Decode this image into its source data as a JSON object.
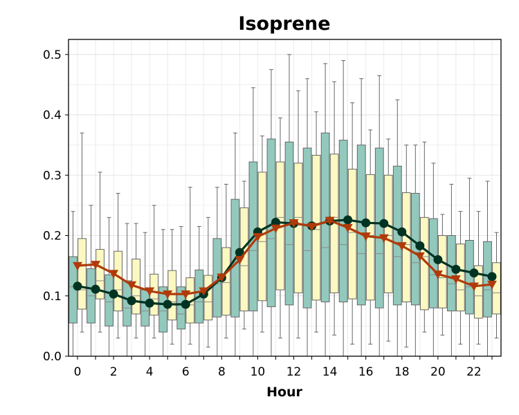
{
  "chart_data": {
    "type": "box",
    "title": "Isoprene",
    "xlabel": "Hour",
    "ylabel": "",
    "xlim": [
      -0.5,
      23.5
    ],
    "ylim": [
      0.0,
      0.525
    ],
    "xticks": [
      0,
      2,
      4,
      6,
      8,
      10,
      12,
      14,
      16,
      18,
      20,
      22
    ],
    "yticks": [
      0.0,
      0.1,
      0.2,
      0.3,
      0.4,
      0.5
    ],
    "ytick_labels": [
      "0.0",
      "0.1",
      "0.2",
      "0.3",
      "0.4",
      "0.5"
    ],
    "grid": true,
    "hours": [
      0,
      1,
      2,
      3,
      4,
      5,
      6,
      7,
      8,
      9,
      10,
      11,
      12,
      13,
      14,
      15,
      16,
      17,
      18,
      19,
      20,
      21,
      22,
      23
    ],
    "box_series": [
      {
        "color": "#93c9bd",
        "boxes": [
          {
            "whislo": 0.0,
            "q1": 0.055,
            "med": 0.115,
            "q3": 0.165,
            "whishi": 0.24
          },
          {
            "whislo": 0.0,
            "q1": 0.055,
            "med": 0.1,
            "q3": 0.145,
            "whishi": 0.25
          },
          {
            "whislo": 0.0,
            "q1": 0.05,
            "med": 0.09,
            "q3": 0.135,
            "whishi": 0.23
          },
          {
            "whislo": 0.0,
            "q1": 0.05,
            "med": 0.08,
            "q3": 0.125,
            "whishi": 0.22
          },
          {
            "whislo": 0.0,
            "q1": 0.05,
            "med": 0.075,
            "q3": 0.11,
            "whishi": 0.205
          },
          {
            "whislo": 0.0,
            "q1": 0.04,
            "med": 0.075,
            "q3": 0.115,
            "whishi": 0.21
          },
          {
            "whislo": 0.0,
            "q1": 0.045,
            "med": 0.07,
            "q3": 0.115,
            "whishi": 0.215
          },
          {
            "whislo": 0.0,
            "q1": 0.055,
            "med": 0.09,
            "q3": 0.143,
            "whishi": 0.215
          },
          {
            "whislo": 0.0,
            "q1": 0.065,
            "med": 0.12,
            "q3": 0.195,
            "whishi": 0.28
          },
          {
            "whislo": 0.0,
            "q1": 0.065,
            "med": 0.155,
            "q3": 0.26,
            "whishi": 0.37
          },
          {
            "whislo": 0.0,
            "q1": 0.075,
            "med": 0.175,
            "q3": 0.322,
            "whishi": 0.445
          },
          {
            "whislo": 0.0,
            "q1": 0.082,
            "med": 0.195,
            "q3": 0.36,
            "whishi": 0.475
          },
          {
            "whislo": 0.0,
            "q1": 0.085,
            "med": 0.185,
            "q3": 0.355,
            "whishi": 0.5
          },
          {
            "whislo": 0.0,
            "q1": 0.08,
            "med": 0.175,
            "q3": 0.345,
            "whishi": 0.46
          },
          {
            "whislo": 0.0,
            "q1": 0.09,
            "med": 0.18,
            "q3": 0.37,
            "whishi": 0.485
          },
          {
            "whislo": 0.0,
            "q1": 0.09,
            "med": 0.185,
            "q3": 0.358,
            "whishi": 0.49
          },
          {
            "whislo": 0.0,
            "q1": 0.085,
            "med": 0.17,
            "q3": 0.35,
            "whishi": 0.46
          },
          {
            "whislo": 0.0,
            "q1": 0.08,
            "med": 0.17,
            "q3": 0.345,
            "whishi": 0.465
          },
          {
            "whislo": 0.0,
            "q1": 0.085,
            "med": 0.165,
            "q3": 0.315,
            "whishi": 0.425
          },
          {
            "whislo": 0.0,
            "q1": 0.085,
            "med": 0.155,
            "q3": 0.27,
            "whishi": 0.35
          },
          {
            "whislo": 0.0,
            "q1": 0.08,
            "med": 0.135,
            "q3": 0.228,
            "whishi": 0.32
          },
          {
            "whislo": 0.0,
            "q1": 0.075,
            "med": 0.12,
            "q3": 0.2,
            "whishi": 0.285
          },
          {
            "whislo": 0.0,
            "q1": 0.07,
            "med": 0.115,
            "q3": 0.192,
            "whishi": 0.295
          },
          {
            "whislo": 0.0,
            "q1": 0.065,
            "med": 0.11,
            "q3": 0.19,
            "whishi": 0.29
          }
        ]
      },
      {
        "color": "#fbf8c1",
        "boxes": [
          {
            "whislo": 0.04,
            "q1": 0.078,
            "med": 0.11,
            "q3": 0.195,
            "whishi": 0.37
          },
          {
            "whislo": 0.04,
            "q1": 0.095,
            "med": 0.125,
            "q3": 0.177,
            "whishi": 0.305
          },
          {
            "whislo": 0.03,
            "q1": 0.075,
            "med": 0.11,
            "q3": 0.174,
            "whishi": 0.27
          },
          {
            "whislo": 0.03,
            "q1": 0.07,
            "med": 0.1,
            "q3": 0.161,
            "whishi": 0.22
          },
          {
            "whislo": 0.03,
            "q1": 0.068,
            "med": 0.095,
            "q3": 0.136,
            "whishi": 0.25
          },
          {
            "whislo": 0.02,
            "q1": 0.06,
            "med": 0.09,
            "q3": 0.142,
            "whishi": 0.21
          },
          {
            "whislo": 0.02,
            "q1": 0.055,
            "med": 0.085,
            "q3": 0.13,
            "whishi": 0.28
          },
          {
            "whislo": 0.015,
            "q1": 0.06,
            "med": 0.09,
            "q3": 0.134,
            "whishi": 0.23
          },
          {
            "whislo": 0.03,
            "q1": 0.068,
            "med": 0.122,
            "q3": 0.18,
            "whishi": 0.285
          },
          {
            "whislo": 0.045,
            "q1": 0.075,
            "med": 0.15,
            "q3": 0.246,
            "whishi": 0.29
          },
          {
            "whislo": 0.04,
            "q1": 0.092,
            "med": 0.19,
            "q3": 0.305,
            "whishi": 0.365
          },
          {
            "whislo": 0.03,
            "q1": 0.11,
            "med": 0.23,
            "q3": 0.322,
            "whishi": 0.395
          },
          {
            "whislo": 0.03,
            "q1": 0.105,
            "med": 0.23,
            "q3": 0.32,
            "whishi": 0.44
          },
          {
            "whislo": 0.04,
            "q1": 0.093,
            "med": 0.21,
            "q3": 0.333,
            "whishi": 0.405
          },
          {
            "whislo": 0.035,
            "q1": 0.105,
            "med": 0.23,
            "q3": 0.335,
            "whishi": 0.455
          },
          {
            "whislo": 0.02,
            "q1": 0.095,
            "med": 0.205,
            "q3": 0.31,
            "whishi": 0.42
          },
          {
            "whislo": 0.02,
            "q1": 0.093,
            "med": 0.2,
            "q3": 0.301,
            "whishi": 0.375
          },
          {
            "whislo": 0.025,
            "q1": 0.105,
            "med": 0.2,
            "q3": 0.3,
            "whishi": 0.36
          },
          {
            "whislo": 0.015,
            "q1": 0.09,
            "med": 0.185,
            "q3": 0.271,
            "whishi": 0.35
          },
          {
            "whislo": 0.04,
            "q1": 0.077,
            "med": 0.165,
            "q3": 0.23,
            "whishi": 0.355
          },
          {
            "whislo": 0.035,
            "q1": 0.08,
            "med": 0.13,
            "q3": 0.2,
            "whishi": 0.235
          },
          {
            "whislo": 0.02,
            "q1": 0.075,
            "med": 0.11,
            "q3": 0.186,
            "whishi": 0.24
          },
          {
            "whislo": 0.02,
            "q1": 0.063,
            "med": 0.1,
            "q3": 0.15,
            "whishi": 0.24
          },
          {
            "whislo": 0.03,
            "q1": 0.07,
            "med": 0.105,
            "q3": 0.155,
            "whishi": 0.205
          }
        ]
      }
    ],
    "line_series": [
      {
        "color": "#003322",
        "marker": "circle",
        "values": [
          0.116,
          0.111,
          0.103,
          0.092,
          0.088,
          0.086,
          0.086,
          0.103,
          0.13,
          0.172,
          0.206,
          0.222,
          0.22,
          0.216,
          0.224,
          0.226,
          0.221,
          0.22,
          0.206,
          0.183,
          0.16,
          0.144,
          0.138,
          0.132
        ]
      },
      {
        "color": "#b03a0a",
        "marker": "triangle-down",
        "values": [
          0.15,
          0.152,
          0.137,
          0.118,
          0.108,
          0.103,
          0.103,
          0.108,
          0.131,
          0.16,
          0.198,
          0.212,
          0.221,
          0.215,
          0.225,
          0.213,
          0.199,
          0.196,
          0.183,
          0.166,
          0.136,
          0.128,
          0.116,
          0.119
        ]
      }
    ]
  }
}
